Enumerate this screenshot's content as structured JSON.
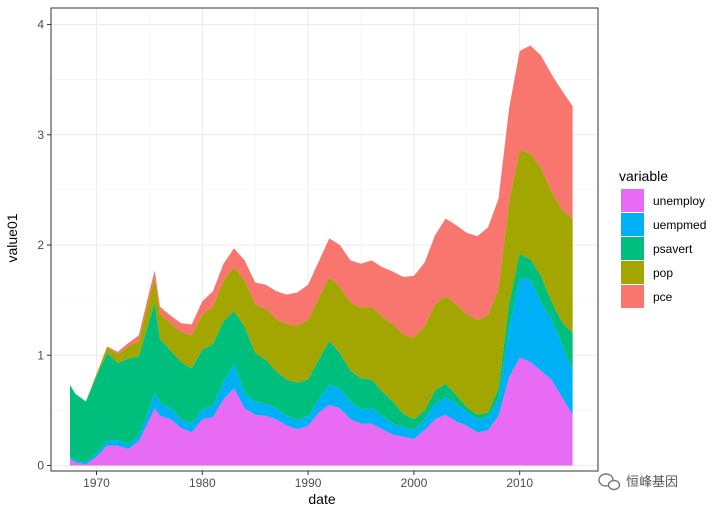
{
  "chart_data": {
    "type": "area",
    "stacked": true,
    "title": "",
    "xlabel": "date",
    "ylabel": "value01",
    "xlim": [
      1965.7,
      2017.4
    ],
    "ylim": [
      -0.05,
      4.15
    ],
    "x_ticks": [
      1970,
      1980,
      1990,
      2000,
      2010
    ],
    "y_ticks": [
      0,
      1,
      2,
      3,
      4
    ],
    "grid": true,
    "legend": {
      "title": "variable",
      "position": "right"
    },
    "colors": {
      "unemploy": "#E76BF3",
      "uempmed": "#00B0F6",
      "psavert": "#00BF7D",
      "pop": "#A3A500",
      "pce": "#F8766D"
    },
    "x": [
      1967.5,
      1968,
      1969,
      1970,
      1971,
      1972,
      1973,
      1974,
      1975,
      1975.5,
      1976,
      1977,
      1978,
      1979,
      1980,
      1981,
      1982,
      1983,
      1984,
      1985,
      1986,
      1987,
      1988,
      1989,
      1990,
      1991,
      1992,
      1993,
      1994,
      1995,
      1996,
      1997,
      1998,
      1999,
      2000,
      2001,
      2002,
      2003,
      2004,
      2005,
      2006,
      2007,
      2008,
      2009,
      2010,
      2011,
      2012,
      2013,
      2014,
      2015
    ],
    "series": [
      {
        "name": "unemploy",
        "values": [
          0.06,
          0.03,
          0.01,
          0.08,
          0.18,
          0.18,
          0.15,
          0.22,
          0.42,
          0.52,
          0.45,
          0.42,
          0.34,
          0.3,
          0.42,
          0.44,
          0.6,
          0.7,
          0.52,
          0.46,
          0.45,
          0.42,
          0.36,
          0.33,
          0.36,
          0.48,
          0.55,
          0.52,
          0.42,
          0.38,
          0.38,
          0.33,
          0.28,
          0.26,
          0.24,
          0.32,
          0.42,
          0.46,
          0.4,
          0.36,
          0.3,
          0.32,
          0.45,
          0.8,
          0.98,
          0.94,
          0.86,
          0.78,
          0.62,
          0.46
        ]
      },
      {
        "name": "uempmed",
        "values": [
          0.02,
          0.02,
          0.02,
          0.03,
          0.04,
          0.05,
          0.04,
          0.05,
          0.1,
          0.14,
          0.12,
          0.1,
          0.08,
          0.08,
          0.09,
          0.1,
          0.16,
          0.22,
          0.14,
          0.12,
          0.11,
          0.1,
          0.09,
          0.08,
          0.09,
          0.12,
          0.18,
          0.18,
          0.16,
          0.13,
          0.14,
          0.12,
          0.1,
          0.09,
          0.08,
          0.1,
          0.14,
          0.16,
          0.16,
          0.13,
          0.12,
          0.12,
          0.15,
          0.45,
          0.72,
          0.75,
          0.62,
          0.55,
          0.48,
          0.4
        ]
      },
      {
        "name": "psavert",
        "values": [
          0.65,
          0.6,
          0.55,
          0.7,
          0.8,
          0.7,
          0.78,
          0.72,
          0.8,
          0.82,
          0.58,
          0.52,
          0.52,
          0.5,
          0.54,
          0.56,
          0.55,
          0.48,
          0.6,
          0.44,
          0.4,
          0.33,
          0.33,
          0.34,
          0.33,
          0.36,
          0.4,
          0.32,
          0.28,
          0.28,
          0.26,
          0.22,
          0.2,
          0.12,
          0.1,
          0.08,
          0.12,
          0.12,
          0.08,
          0.04,
          0.04,
          0.04,
          0.1,
          0.22,
          0.22,
          0.18,
          0.24,
          0.16,
          0.2,
          0.34
        ]
      },
      {
        "name": "pop",
        "values": [
          0.0,
          0.0,
          0.0,
          0.02,
          0.05,
          0.08,
          0.11,
          0.14,
          0.2,
          0.22,
          0.23,
          0.25,
          0.27,
          0.3,
          0.32,
          0.34,
          0.37,
          0.4,
          0.42,
          0.44,
          0.46,
          0.48,
          0.5,
          0.52,
          0.54,
          0.56,
          0.58,
          0.6,
          0.62,
          0.64,
          0.66,
          0.68,
          0.7,
          0.72,
          0.74,
          0.76,
          0.78,
          0.8,
          0.82,
          0.84,
          0.86,
          0.88,
          0.9,
          0.92,
          0.94,
          0.96,
          0.98,
          1.0,
          1.02,
          1.04
        ]
      },
      {
        "name": "pce",
        "values": [
          0.0,
          0.0,
          0.0,
          0.0,
          0.01,
          0.02,
          0.03,
          0.05,
          0.06,
          0.07,
          0.06,
          0.07,
          0.08,
          0.1,
          0.12,
          0.14,
          0.15,
          0.17,
          0.18,
          0.2,
          0.22,
          0.25,
          0.27,
          0.3,
          0.32,
          0.33,
          0.35,
          0.38,
          0.38,
          0.4,
          0.42,
          0.45,
          0.48,
          0.52,
          0.56,
          0.58,
          0.63,
          0.7,
          0.72,
          0.74,
          0.76,
          0.8,
          0.82,
          0.85,
          0.9,
          0.98,
          1.02,
          1.06,
          1.08,
          1.02
        ]
      }
    ]
  },
  "watermark": {
    "text": "恒峰基因"
  }
}
